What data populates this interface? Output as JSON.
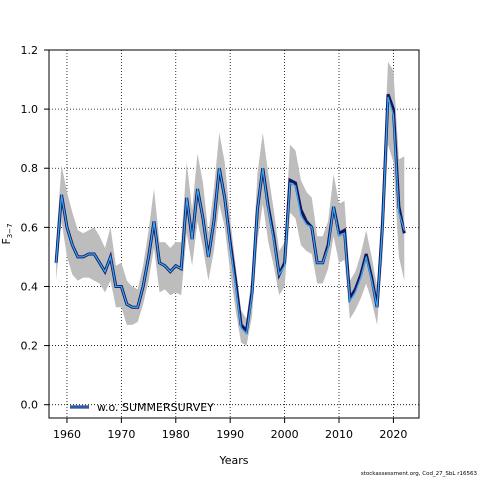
{
  "chart_data": {
    "type": "line",
    "xlabel": "Years",
    "ylabel": "F",
    "ylabel_subscript": "3−7",
    "xlim": [
      1956.7,
      2024.7
    ],
    "ylim": [
      -0.045,
      1.2
    ],
    "xticks": [
      1960,
      1970,
      1980,
      1990,
      2000,
      2010,
      2020
    ],
    "yticks": [
      0.0,
      0.2,
      0.4,
      0.6,
      0.8,
      1.0,
      1.2
    ],
    "grid": true,
    "legend_position": "bottom-left",
    "colors": {
      "band": "#bdbdbd",
      "reference": "#131560",
      "series": "#38a8ef"
    },
    "x": [
      1958,
      1959,
      1960,
      1961,
      1962,
      1963,
      1964,
      1965,
      1966,
      1967,
      1968,
      1969,
      1970,
      1971,
      1972,
      1973,
      1974,
      1975,
      1976,
      1977,
      1978,
      1979,
      1980,
      1981,
      1982,
      1983,
      1984,
      1985,
      1986,
      1987,
      1988,
      1989,
      1990,
      1991,
      1992,
      1993,
      1994,
      1995,
      1996,
      1997,
      1998,
      1999,
      2000,
      2001,
      2002,
      2003,
      2004,
      2005,
      2006,
      2007,
      2008,
      2009,
      2010,
      2011,
      2012,
      2013,
      2014,
      2015,
      2016,
      2017,
      2018,
      2019,
      2020,
      2021,
      2022
    ],
    "series": [
      {
        "name": "w.o. SUMMERSURVEY",
        "values": [
          0.48,
          0.71,
          0.6,
          0.54,
          0.5,
          0.5,
          0.51,
          0.51,
          0.48,
          0.45,
          0.5,
          0.4,
          0.4,
          0.34,
          0.33,
          0.33,
          0.4,
          0.5,
          0.62,
          0.48,
          0.47,
          0.45,
          0.47,
          0.46,
          0.7,
          0.56,
          0.73,
          0.63,
          0.5,
          0.62,
          0.8,
          0.7,
          0.54,
          0.4,
          0.26,
          0.24,
          0.37,
          0.66,
          0.8,
          0.66,
          0.56,
          0.44,
          0.47,
          0.75,
          0.74,
          0.64,
          0.61,
          0.6,
          0.48,
          0.48,
          0.53,
          0.67,
          0.57,
          0.58,
          0.35,
          0.38,
          0.43,
          0.5,
          0.42,
          0.33,
          0.6,
          1.04,
          0.98,
          0.65,
          0.59
        ],
        "lower": [
          0.42,
          0.62,
          0.5,
          0.44,
          0.42,
          0.43,
          0.43,
          0.42,
          0.41,
          0.38,
          0.42,
          0.33,
          0.33,
          0.27,
          0.27,
          0.28,
          0.34,
          0.42,
          0.53,
          0.38,
          0.39,
          0.37,
          0.38,
          0.37,
          0.58,
          0.47,
          0.62,
          0.53,
          0.42,
          0.52,
          0.68,
          0.6,
          0.45,
          0.32,
          0.21,
          0.2,
          0.3,
          0.55,
          0.68,
          0.55,
          0.47,
          0.37,
          0.4,
          0.65,
          0.63,
          0.54,
          0.52,
          0.51,
          0.41,
          0.41,
          0.46,
          0.57,
          0.48,
          0.49,
          0.29,
          0.32,
          0.36,
          0.41,
          0.35,
          0.27,
          0.5,
          0.88,
          0.82,
          0.5,
          0.42
        ],
        "upper": [
          0.55,
          0.81,
          0.72,
          0.65,
          0.59,
          0.58,
          0.59,
          0.6,
          0.57,
          0.53,
          0.6,
          0.47,
          0.48,
          0.42,
          0.4,
          0.39,
          0.47,
          0.59,
          0.73,
          0.55,
          0.55,
          0.53,
          0.55,
          0.55,
          0.82,
          0.66,
          0.85,
          0.75,
          0.58,
          0.73,
          0.92,
          0.82,
          0.63,
          0.47,
          0.32,
          0.29,
          0.44,
          0.78,
          0.92,
          0.78,
          0.66,
          0.52,
          0.55,
          0.88,
          0.86,
          0.76,
          0.72,
          0.7,
          0.57,
          0.57,
          0.62,
          0.78,
          0.68,
          0.69,
          0.42,
          0.45,
          0.51,
          0.59,
          0.5,
          0.4,
          0.72,
          1.16,
          1.13,
          0.83,
          0.84
        ]
      }
    ],
    "reference_line": [
      0.48,
      0.71,
      0.6,
      0.54,
      0.5,
      0.5,
      0.51,
      0.51,
      0.48,
      0.45,
      0.5,
      0.4,
      0.4,
      0.34,
      0.33,
      0.33,
      0.4,
      0.5,
      0.62,
      0.48,
      0.47,
      0.45,
      0.47,
      0.46,
      0.7,
      0.56,
      0.73,
      0.63,
      0.5,
      0.62,
      0.8,
      0.7,
      0.55,
      0.42,
      0.27,
      0.25,
      0.38,
      0.66,
      0.8,
      0.67,
      0.57,
      0.44,
      0.48,
      0.76,
      0.75,
      0.66,
      0.62,
      0.6,
      0.48,
      0.48,
      0.54,
      0.67,
      0.58,
      0.59,
      0.36,
      0.39,
      0.44,
      0.51,
      0.43,
      0.33,
      0.61,
      1.05,
      1.0,
      0.67,
      0.58
    ]
  },
  "footer": "stockassessment.org, Cod_27_SbL r16563"
}
